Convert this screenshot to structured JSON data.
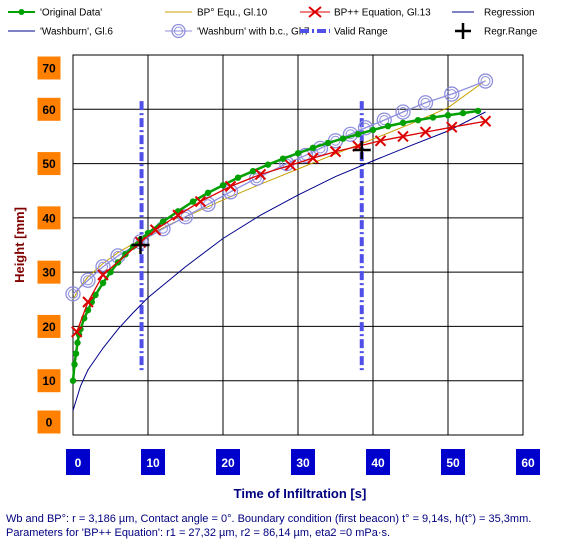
{
  "chart_data": {
    "type": "line",
    "xlabel": "Time of Infiltration [s]",
    "ylabel": "Height [mm]",
    "xlim": [
      0,
      60
    ],
    "ylim": [
      0,
      70
    ],
    "x_ticks": [
      "0",
      "10",
      "20",
      "30",
      "40",
      "50",
      "60"
    ],
    "y_ticks": [
      "0",
      "10",
      "20",
      "30",
      "40",
      "50",
      "60",
      "70"
    ],
    "grid": true,
    "legend_position": "top",
    "colors": {
      "tick_box_x": "#0000cc",
      "tick_box_y": "#ff8000",
      "tick_text_x": "#ffffff",
      "tick_text_y": "#000000",
      "xlabel_color": "#000080",
      "ylabel_color": "#800000"
    },
    "series": [
      {
        "name": "'Original Data'",
        "color": "#00a000",
        "marker": "dot",
        "x": [
          0,
          0.2,
          0.4,
          0.6,
          0.8,
          1,
          1.5,
          2,
          2.5,
          3,
          4,
          5,
          6,
          7,
          8,
          9,
          10,
          12,
          14,
          16,
          18,
          20,
          22,
          24,
          26,
          28,
          30,
          32,
          34,
          36,
          38,
          40,
          42,
          44,
          46,
          48,
          50,
          52,
          54
        ],
        "y": [
          10,
          13,
          15,
          17,
          18.5,
          19.5,
          21.5,
          23,
          24.5,
          25.8,
          28,
          30,
          31.8,
          33.3,
          34.7,
          36,
          37.2,
          39.3,
          41.2,
          43,
          44.6,
          46,
          47.4,
          48.6,
          49.8,
          50.9,
          51.9,
          52.9,
          53.8,
          54.6,
          55.4,
          56.2,
          56.9,
          57.5,
          58,
          58.5,
          58.9,
          59.3,
          59.7
        ]
      },
      {
        "name": "BP° Equ., Gl.10",
        "color": "#c8a000",
        "marker": "none",
        "x": [
          0,
          1,
          2,
          4,
          6,
          8,
          10,
          15,
          20,
          25,
          30,
          35,
          40,
          45,
          50,
          55
        ],
        "y": [
          25,
          27.4,
          29.1,
          31.6,
          33.6,
          35.2,
          36.8,
          40.2,
          43.3,
          46.2,
          49,
          51.8,
          54.5,
          57.3,
          60.3,
          65.3
        ]
      },
      {
        "name": "BP++ Equation, Gl.13",
        "color": "#dd0000",
        "marker": "x",
        "x": [
          0.5,
          2,
          4,
          9,
          11,
          14,
          17,
          21,
          25,
          29,
          32,
          35,
          38,
          41,
          44,
          47,
          50.5,
          55
        ],
        "y": [
          19,
          24.5,
          29.5,
          35.5,
          37.8,
          40.5,
          43,
          45.8,
          48,
          49.7,
          51,
          52.2,
          53.2,
          54.2,
          55,
          55.8,
          56.7,
          57.8
        ]
      },
      {
        "name": "Regression",
        "color": "#00008b",
        "marker": "none",
        "x": [
          0,
          1,
          2,
          4,
          6,
          8,
          10,
          15,
          20,
          25,
          30,
          35,
          40,
          45,
          50,
          55
        ],
        "y": [
          4.5,
          9,
          12,
          16,
          19.5,
          22.5,
          25.3,
          31,
          36.2,
          40.5,
          44.2,
          47.6,
          50.5,
          53.3,
          56,
          59.5
        ]
      },
      {
        "name": "'Washburn', Gl.6",
        "color": "#00008b",
        "marker": "none",
        "x": [],
        "y": []
      },
      {
        "name": "'Washburn' with b.c., Gl.7",
        "color": "#8f8fdf",
        "marker": "circle",
        "x": [
          0,
          2,
          4,
          6,
          9,
          12,
          15,
          18,
          21,
          24.5,
          28.5,
          31,
          33,
          35,
          37,
          39,
          41.5,
          44,
          47,
          50.5,
          55
        ],
        "y": [
          26,
          28.5,
          31,
          33,
          35.6,
          38,
          40.2,
          42.5,
          44.8,
          47.3,
          50,
          51.5,
          52.8,
          54.2,
          55.4,
          56.6,
          58,
          59.5,
          61.2,
          62.8,
          65.2
        ]
      },
      {
        "name": "Valid Range",
        "color": "#5050e8",
        "marker": "dashdot",
        "x": [],
        "y": []
      },
      {
        "name": "Regr.Range",
        "color": "#000000",
        "marker": "plus",
        "x": [
          9,
          38.5
        ],
        "y": [
          35,
          52.5
        ]
      }
    ],
    "valid_range_x": [
      9.14,
      38.5
    ]
  },
  "footer": {
    "line1": "Wb and BP°: r = 3,186 µm, Contact angle = 0°. Boundary condition  (first beacon) t° = 9,14s, h(t°) = 35,3mm.",
    "line2": "Parameters for 'BP++ Equation': r1 = 27,32 µm,  r2 = 86,14 µm, eta2 =0 mPa·s."
  }
}
